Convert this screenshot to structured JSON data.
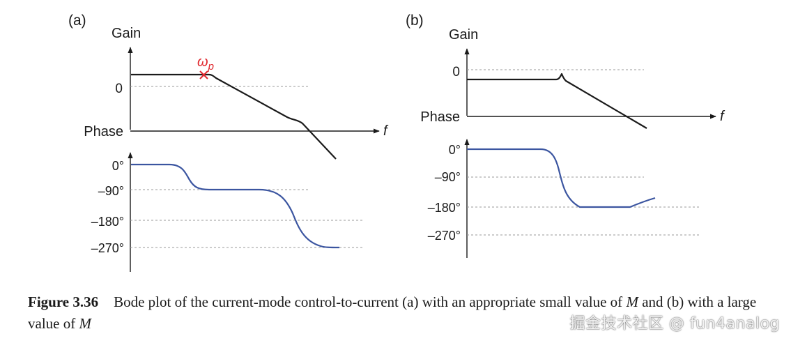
{
  "panel_a": {
    "label": "(a)",
    "gain_axis_label": "Gain",
    "gain_zero_tick": "0",
    "pole_label_omega": "ω",
    "pole_label_sub": "p",
    "phase_axis_label": "Phase",
    "freq_axis_label": "f",
    "phase_ticks": [
      "0°",
      "–90°",
      "–180°",
      "–270°"
    ]
  },
  "panel_b": {
    "label": "(b)",
    "gain_axis_label": "Gain",
    "gain_zero_tick": "0",
    "phase_axis_label": "Phase",
    "freq_axis_label": "f",
    "phase_ticks": [
      "0°",
      "–90°",
      "–180°",
      "–270°"
    ]
  },
  "caption": {
    "figure_number": "Figure 3.36",
    "text_before_m1": "Bode plot of the current-mode control-to-current (a) with an appropriate small value of ",
    "m1": "M",
    "text_before_m2": " and (b) with a large value of ",
    "m2": "M"
  },
  "watermark": "掘金技术社区 @ fun4analog",
  "colors": {
    "gain_curve": "#1a1a1a",
    "phase_curve": "#3b55a0",
    "pole_marker": "#e0282e",
    "gridline": "#9a9a9a",
    "axis": "#1a1a1a"
  }
}
